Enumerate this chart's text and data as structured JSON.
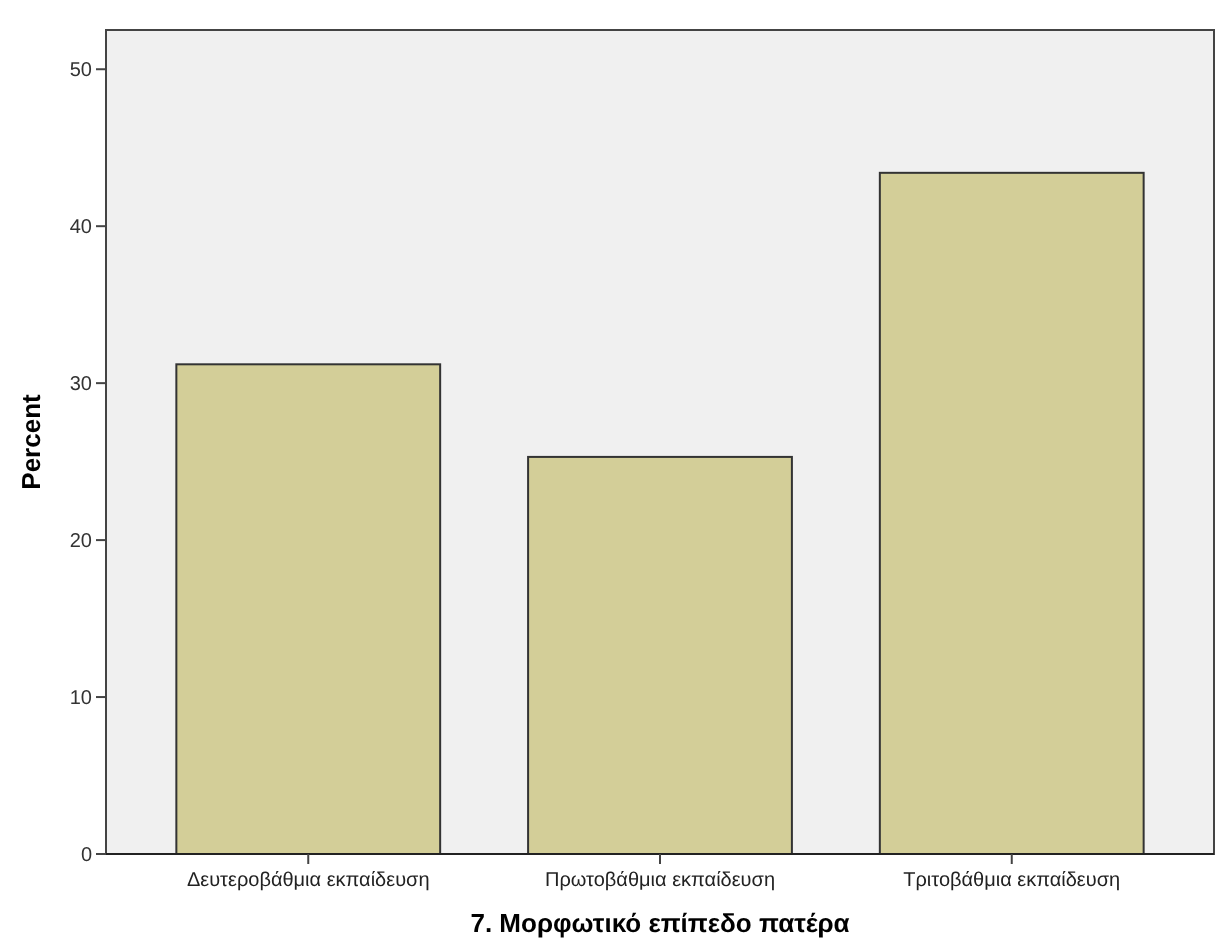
{
  "chart_data": {
    "type": "bar",
    "xlabel": "7. Μορφωτικό επίπεδο πατέρα",
    "ylabel": "Percent",
    "categories": [
      "Δευτεροβάθμια εκπαίδευση",
      "Πρωτοβάθμια εκπαίδευση",
      "Τριτοβάθμια εκπαίδευση"
    ],
    "values": [
      31.2,
      25.3,
      43.4
    ],
    "color": "#d3ce98",
    "ylim": [
      0,
      52.5
    ],
    "yticks": [
      0,
      10,
      20,
      30,
      40,
      50
    ],
    "grid": false
  }
}
